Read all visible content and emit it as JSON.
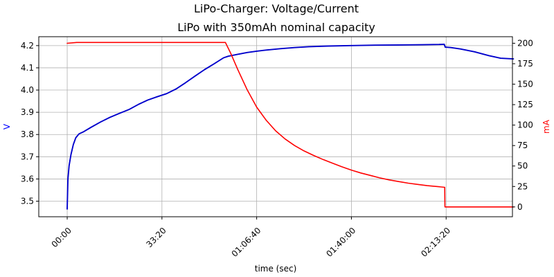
{
  "chart_data": {
    "type": "line",
    "title": "LiPo-Charger: Voltage/Current",
    "subtitle": "LiPo with 350mAh nominal capacity",
    "xlabel": "time (sec)",
    "ylabel_left": "V",
    "ylabel_right": "mA",
    "xlim": [
      -600,
      9400
    ],
    "ylim_left": [
      3.43,
      4.24
    ],
    "ylim_right": [
      -12,
      208
    ],
    "x_ticks": [
      {
        "value": 0,
        "label": "00:00"
      },
      {
        "value": 2000,
        "label": "33:20"
      },
      {
        "value": 4000,
        "label": "01:06:40"
      },
      {
        "value": 6000,
        "label": "01:40:00"
      },
      {
        "value": 8000,
        "label": "02:13:20"
      }
    ],
    "y_ticks_left": [
      3.5,
      3.6,
      3.7,
      3.8,
      3.9,
      4.0,
      4.1,
      4.2
    ],
    "y_ticks_right": [
      0,
      25,
      50,
      75,
      100,
      125,
      150,
      175,
      200
    ],
    "grid": true,
    "series": [
      {
        "name": "",
        "axis": "left",
        "color": "#0000cc",
        "points": [
          [
            0,
            3.465
          ],
          [
            15,
            3.6
          ],
          [
            40,
            3.66
          ],
          [
            80,
            3.71
          ],
          [
            130,
            3.755
          ],
          [
            180,
            3.785
          ],
          [
            250,
            3.803
          ],
          [
            350,
            3.813
          ],
          [
            500,
            3.832
          ],
          [
            700,
            3.856
          ],
          [
            900,
            3.877
          ],
          [
            1100,
            3.895
          ],
          [
            1300,
            3.912
          ],
          [
            1500,
            3.935
          ],
          [
            1700,
            3.955
          ],
          [
            1900,
            3.97
          ],
          [
            2100,
            3.984
          ],
          [
            2300,
            4.005
          ],
          [
            2500,
            4.033
          ],
          [
            2700,
            4.063
          ],
          [
            2900,
            4.092
          ],
          [
            3100,
            4.118
          ],
          [
            3300,
            4.145
          ],
          [
            3400,
            4.152
          ],
          [
            3600,
            4.161
          ],
          [
            3800,
            4.169
          ],
          [
            4000,
            4.175
          ],
          [
            4200,
            4.18
          ],
          [
            4500,
            4.186
          ],
          [
            4800,
            4.191
          ],
          [
            5100,
            4.195
          ],
          [
            5500,
            4.198
          ],
          [
            6000,
            4.2
          ],
          [
            6500,
            4.202
          ],
          [
            7000,
            4.203
          ],
          [
            7500,
            4.204
          ],
          [
            7850,
            4.205
          ],
          [
            7960,
            4.206
          ],
          [
            7980,
            4.193
          ],
          [
            8100,
            4.191
          ],
          [
            8300,
            4.185
          ],
          [
            8600,
            4.172
          ],
          [
            8900,
            4.155
          ],
          [
            9150,
            4.143
          ],
          [
            9420,
            4.14
          ]
        ]
      },
      {
        "name": "",
        "axis": "right",
        "color": "#ff0000",
        "points": [
          [
            0,
            200
          ],
          [
            200,
            201
          ],
          [
            1000,
            201
          ],
          [
            2000,
            201
          ],
          [
            3000,
            201
          ],
          [
            3340,
            201
          ],
          [
            3450,
            188
          ],
          [
            3600,
            168
          ],
          [
            3800,
            143
          ],
          [
            4000,
            122
          ],
          [
            4200,
            106
          ],
          [
            4400,
            93
          ],
          [
            4600,
            83
          ],
          [
            4800,
            75
          ],
          [
            5000,
            68.5
          ],
          [
            5200,
            63
          ],
          [
            5400,
            58
          ],
          [
            5600,
            53.5
          ],
          [
            5800,
            49
          ],
          [
            6000,
            45
          ],
          [
            6200,
            41.5
          ],
          [
            6400,
            38.5
          ],
          [
            6600,
            35.5
          ],
          [
            6800,
            33
          ],
          [
            7000,
            31
          ],
          [
            7200,
            29
          ],
          [
            7400,
            27.5
          ],
          [
            7600,
            26
          ],
          [
            7800,
            25
          ],
          [
            7970,
            24
          ],
          [
            7975,
            0
          ],
          [
            9420,
            0
          ]
        ]
      }
    ]
  }
}
